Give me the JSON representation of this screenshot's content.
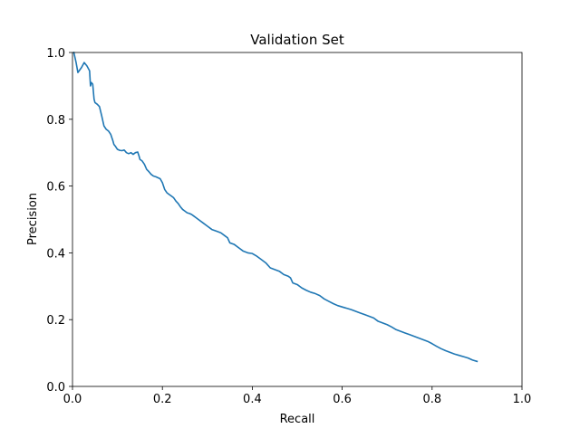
{
  "chart_data": {
    "type": "line",
    "title": "Validation Set",
    "xlabel": "Recall",
    "ylabel": "Precision",
    "xlim": [
      0.0,
      1.0
    ],
    "ylim": [
      0.0,
      1.0
    ],
    "xticks": [
      "0.0",
      "0.2",
      "0.4",
      "0.6",
      "0.8",
      "1.0"
    ],
    "yticks": [
      "0.0",
      "0.2",
      "0.4",
      "0.6",
      "0.8",
      "1.0"
    ],
    "grid": false,
    "line_color": "#1f77b4",
    "series": [
      {
        "x": [
          0.003,
          0.008,
          0.012,
          0.02,
          0.026,
          0.032,
          0.038,
          0.04,
          0.042,
          0.045,
          0.048,
          0.05,
          0.055,
          0.06,
          0.065,
          0.07,
          0.075,
          0.08,
          0.085,
          0.09,
          0.092,
          0.095,
          0.1,
          0.105,
          0.11,
          0.115,
          0.12,
          0.125,
          0.13,
          0.135,
          0.14,
          0.145,
          0.148,
          0.15,
          0.155,
          0.16,
          0.165,
          0.17,
          0.175,
          0.18,
          0.185,
          0.19,
          0.195,
          0.2,
          0.205,
          0.21,
          0.215,
          0.22,
          0.225,
          0.23,
          0.235,
          0.24,
          0.245,
          0.25,
          0.255,
          0.26,
          0.265,
          0.27,
          0.275,
          0.28,
          0.29,
          0.3,
          0.31,
          0.32,
          0.33,
          0.34,
          0.345,
          0.35,
          0.36,
          0.37,
          0.38,
          0.39,
          0.4,
          0.41,
          0.42,
          0.43,
          0.44,
          0.45,
          0.46,
          0.47,
          0.48,
          0.485,
          0.49,
          0.5,
          0.51,
          0.52,
          0.53,
          0.54,
          0.55,
          0.56,
          0.57,
          0.58,
          0.59,
          0.6,
          0.61,
          0.62,
          0.63,
          0.64,
          0.65,
          0.66,
          0.67,
          0.68,
          0.69,
          0.7,
          0.71,
          0.72,
          0.73,
          0.74,
          0.75,
          0.76,
          0.77,
          0.78,
          0.79,
          0.8,
          0.81,
          0.82,
          0.83,
          0.84,
          0.85,
          0.86,
          0.87,
          0.88,
          0.89,
          0.9
        ],
        "y": [
          1.0,
          0.97,
          0.94,
          0.955,
          0.97,
          0.96,
          0.945,
          0.9,
          0.91,
          0.905,
          0.86,
          0.85,
          0.845,
          0.838,
          0.81,
          0.78,
          0.77,
          0.765,
          0.755,
          0.735,
          0.725,
          0.72,
          0.71,
          0.707,
          0.706,
          0.708,
          0.7,
          0.697,
          0.7,
          0.695,
          0.7,
          0.702,
          0.69,
          0.68,
          0.675,
          0.665,
          0.65,
          0.643,
          0.635,
          0.63,
          0.628,
          0.625,
          0.622,
          0.61,
          0.59,
          0.58,
          0.575,
          0.57,
          0.565,
          0.555,
          0.548,
          0.538,
          0.53,
          0.525,
          0.52,
          0.518,
          0.515,
          0.51,
          0.505,
          0.5,
          0.49,
          0.48,
          0.47,
          0.465,
          0.46,
          0.45,
          0.445,
          0.43,
          0.425,
          0.415,
          0.405,
          0.4,
          0.398,
          0.39,
          0.38,
          0.37,
          0.355,
          0.35,
          0.345,
          0.335,
          0.33,
          0.325,
          0.31,
          0.305,
          0.295,
          0.288,
          0.282,
          0.278,
          0.272,
          0.262,
          0.255,
          0.248,
          0.242,
          0.238,
          0.234,
          0.23,
          0.225,
          0.22,
          0.215,
          0.21,
          0.205,
          0.195,
          0.19,
          0.185,
          0.178,
          0.17,
          0.165,
          0.16,
          0.155,
          0.15,
          0.145,
          0.14,
          0.135,
          0.128,
          0.12,
          0.113,
          0.107,
          0.102,
          0.097,
          0.093,
          0.089,
          0.085,
          0.079,
          0.075
        ]
      }
    ]
  }
}
